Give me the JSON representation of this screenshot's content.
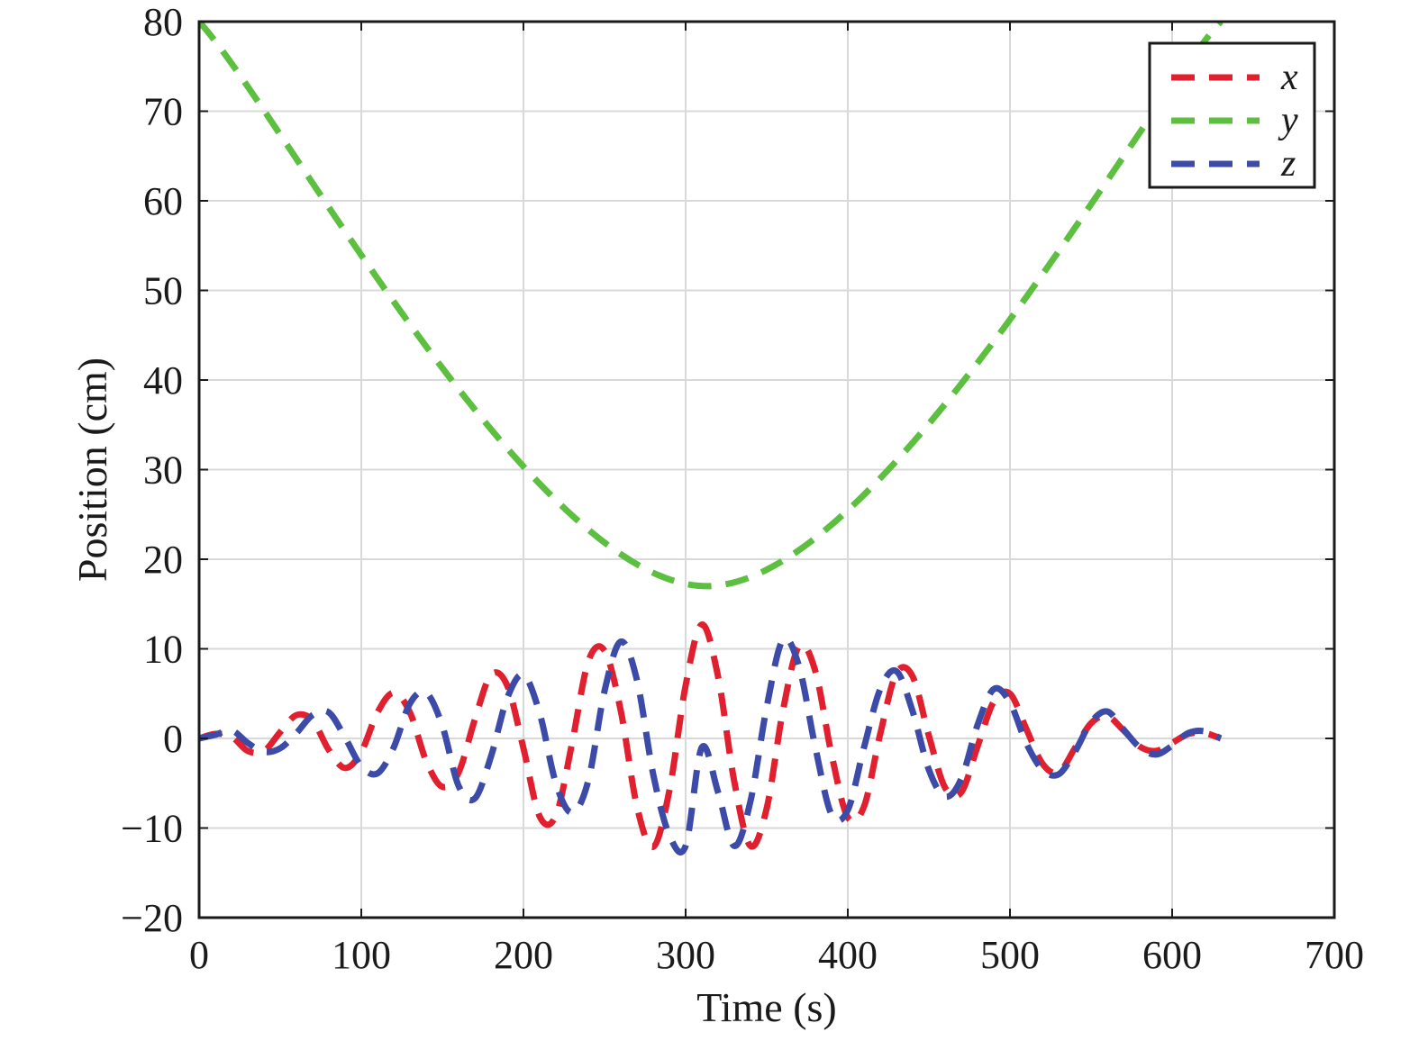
{
  "chart_data": {
    "type": "line",
    "xlabel": "Time (s)",
    "ylabel": "Position (cm)",
    "xlim": [
      0,
      700
    ],
    "ylim": [
      -20,
      80
    ],
    "xticks": [
      0,
      100,
      200,
      300,
      400,
      500,
      600,
      700
    ],
    "yticks": [
      -20,
      -10,
      0,
      10,
      20,
      30,
      40,
      50,
      60,
      70,
      80
    ],
    "xtick_labels": [
      "0",
      "100",
      "200",
      "300",
      "400",
      "500",
      "600",
      "700"
    ],
    "ytick_labels": [
      "−20",
      "−10",
      "0",
      "10",
      "20",
      "30",
      "40",
      "50",
      "60",
      "70",
      "80"
    ],
    "grid": true,
    "legend_position": "top-right",
    "line_style": "dashed",
    "series": [
      {
        "name": "x",
        "color": "#e0202e",
        "x": [
          0,
          10,
          20,
          30,
          40,
          50,
          60,
          70,
          80,
          90,
          100,
          110,
          120,
          130,
          140,
          150,
          160,
          170,
          180,
          190,
          200,
          210,
          220,
          230,
          240,
          250,
          260,
          270,
          280,
          290,
          300,
          310,
          320,
          330,
          340,
          350,
          360,
          370,
          380,
          390,
          400,
          410,
          420,
          430,
          440,
          450,
          460,
          470,
          480,
          490,
          500,
          510,
          520,
          530,
          540,
          550,
          560,
          570,
          580,
          590,
          600,
          610,
          620,
          630
        ],
        "y": [
          0,
          0.5,
          0.2,
          -1.4,
          -1.4,
          0.7,
          2.6,
          2.0,
          -1.3,
          -3.3,
          -1.5,
          2.9,
          5.1,
          2.9,
          -2.5,
          -5.4,
          -3.8,
          2.1,
          7.1,
          5.9,
          -1.1,
          -8.7,
          -8.6,
          -0.5,
          8.6,
          9.8,
          3.1,
          -7.6,
          -12.1,
          -5.8,
          5.9,
          12.7,
          6.9,
          -4.8,
          -12.0,
          -7.8,
          3.1,
          10.3,
          7.5,
          -1.8,
          -8.8,
          -7.6,
          0.5,
          7.3,
          6.9,
          0.3,
          -5.5,
          -6.0,
          -0.9,
          4.1,
          5.0,
          1.1,
          -2.8,
          -3.8,
          -1.1,
          1.7,
          2.5,
          0.9,
          -0.9,
          -1.4,
          -0.5,
          0.5,
          0.6,
          0
        ]
      },
      {
        "name": "y",
        "color": "#5cbf3f",
        "x": [
          0,
          313,
          630
        ],
        "y": [
          80,
          17,
          80
        ]
      },
      {
        "name": "z",
        "color": "#3c4aa8",
        "x": [
          0,
          10,
          20,
          30,
          40,
          50,
          60,
          70,
          80,
          90,
          100,
          110,
          120,
          130,
          140,
          150,
          160,
          170,
          180,
          190,
          200,
          210,
          220,
          230,
          240,
          250,
          260,
          270,
          280,
          290,
          300,
          310,
          320,
          330,
          340,
          350,
          360,
          370,
          380,
          390,
          400,
          410,
          420,
          430,
          440,
          450,
          460,
          470,
          480,
          490,
          500,
          510,
          520,
          530,
          540,
          550,
          560,
          570,
          580,
          590,
          600,
          610,
          620,
          630
        ],
        "y": [
          0,
          0.4,
          0.9,
          -0.5,
          -1.5,
          -1.1,
          0.6,
          2.6,
          2.9,
          0.1,
          -3.1,
          -3.9,
          -1.0,
          3.9,
          5.1,
          1.4,
          -5.3,
          -6.7,
          -2.0,
          4.5,
          7.1,
          2.8,
          -5.0,
          -8.3,
          -4.7,
          5.3,
          10.8,
          6.5,
          -4.0,
          -10.8,
          -12.0,
          -1.0,
          -6.0,
          -12.0,
          -7.0,
          3.5,
          11.0,
          8.0,
          -1.0,
          -8.5,
          -8.0,
          -1.0,
          5.5,
          7.5,
          3.0,
          -3.5,
          -6.5,
          -4.5,
          1.5,
          5.5,
          4.0,
          -0.5,
          -3.5,
          -4.0,
          -1.5,
          1.8,
          3.0,
          1.0,
          -1.0,
          -1.8,
          -0.8,
          0.6,
          0.8,
          0
        ]
      }
    ]
  }
}
